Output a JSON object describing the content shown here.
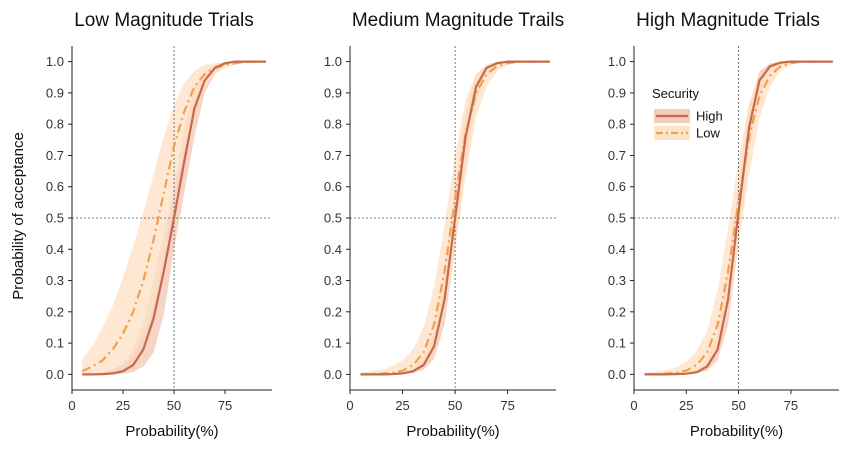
{
  "figure": {
    "ylabel": "Probability of acceptance"
  },
  "legend": {
    "title": "Security",
    "entries": [
      {
        "name": "High",
        "color": "#c8694a",
        "band": "#f3c7b3",
        "dash": "solid"
      },
      {
        "name": "Low",
        "color": "#f0a04f",
        "band": "#fde0c4",
        "dash": "dashdot"
      }
    ]
  },
  "chart_data": [
    {
      "type": "line",
      "title": "Low Magnitude Trials",
      "xlabel": "Probability(%)",
      "ylabel": "Probability of acceptance",
      "xlim": [
        0,
        98
      ],
      "ylim": [
        -0.05,
        1.05
      ],
      "xticks": [
        "0",
        "25",
        "50",
        "75"
      ],
      "yticks": [
        "0.0",
        "0.1",
        "0.2",
        "0.3",
        "0.4",
        "0.5",
        "0.6",
        "0.7",
        "0.8",
        "0.9",
        "1.0"
      ],
      "reference_lines": {
        "x": 50,
        "y": 0.5
      },
      "series": [
        {
          "name": "High",
          "x": [
            5,
            10,
            15,
            20,
            25,
            30,
            35,
            40,
            45,
            50,
            55,
            60,
            65,
            70,
            75,
            80,
            85,
            90,
            95
          ],
          "y": [
            0.0,
            0.0,
            0.001,
            0.003,
            0.01,
            0.03,
            0.08,
            0.18,
            0.33,
            0.5,
            0.68,
            0.85,
            0.94,
            0.98,
            0.995,
            1.0,
            1.0,
            1.0,
            1.0
          ],
          "lower": [
            0.0,
            0.0,
            0.0,
            0.0,
            0.002,
            0.008,
            0.025,
            0.07,
            0.19,
            0.4,
            0.58,
            0.76,
            0.9,
            0.96,
            0.99,
            0.997,
            1.0,
            1.0,
            1.0
          ],
          "upper": [
            0.0,
            0.002,
            0.006,
            0.015,
            0.035,
            0.08,
            0.17,
            0.3,
            0.46,
            0.6,
            0.78,
            0.92,
            0.97,
            0.99,
            0.999,
            1.0,
            1.0,
            1.0,
            1.0
          ]
        },
        {
          "name": "Low",
          "x": [
            5,
            10,
            15,
            20,
            25,
            30,
            35,
            40,
            45,
            50,
            55,
            60,
            65,
            70,
            75,
            80,
            85,
            90,
            95
          ],
          "y": [
            0.01,
            0.025,
            0.045,
            0.08,
            0.13,
            0.2,
            0.3,
            0.43,
            0.58,
            0.73,
            0.84,
            0.92,
            0.96,
            0.98,
            0.99,
            0.995,
            1.0,
            1.0,
            1.0
          ],
          "lower": [
            0.0,
            0.002,
            0.006,
            0.015,
            0.03,
            0.06,
            0.12,
            0.22,
            0.38,
            0.58,
            0.72,
            0.84,
            0.92,
            0.96,
            0.98,
            0.99,
            0.995,
            1.0,
            1.0
          ],
          "upper": [
            0.05,
            0.09,
            0.15,
            0.22,
            0.31,
            0.41,
            0.52,
            0.64,
            0.76,
            0.86,
            0.93,
            0.97,
            0.99,
            0.995,
            1.0,
            1.0,
            1.0,
            1.0,
            1.0
          ]
        }
      ]
    },
    {
      "type": "line",
      "title": "Medium Magnitude Trails",
      "xlabel": "Probability(%)",
      "ylabel": "",
      "xlim": [
        0,
        98
      ],
      "ylim": [
        -0.05,
        1.05
      ],
      "xticks": [
        "0",
        "25",
        "50",
        "75"
      ],
      "yticks": [
        "0.0",
        "0.1",
        "0.2",
        "0.3",
        "0.4",
        "0.5",
        "0.6",
        "0.7",
        "0.8",
        "0.9",
        "1.0"
      ],
      "reference_lines": {
        "x": 50,
        "y": 0.5
      },
      "series": [
        {
          "name": "High",
          "x": [
            5,
            10,
            15,
            20,
            25,
            30,
            35,
            40,
            45,
            50,
            55,
            60,
            65,
            70,
            75,
            80,
            85,
            90,
            95
          ],
          "y": [
            0.0,
            0.0,
            0.0,
            0.001,
            0.003,
            0.01,
            0.03,
            0.09,
            0.24,
            0.5,
            0.76,
            0.92,
            0.98,
            0.995,
            1.0,
            1.0,
            1.0,
            1.0,
            1.0
          ],
          "lower": [
            0.0,
            0.0,
            0.0,
            0.0,
            0.001,
            0.004,
            0.015,
            0.05,
            0.16,
            0.4,
            0.67,
            0.87,
            0.96,
            0.99,
            1.0,
            1.0,
            1.0,
            1.0,
            1.0
          ],
          "upper": [
            0.0,
            0.0,
            0.001,
            0.003,
            0.008,
            0.02,
            0.055,
            0.14,
            0.33,
            0.6,
            0.84,
            0.96,
            0.99,
            1.0,
            1.0,
            1.0,
            1.0,
            1.0,
            1.0
          ]
        },
        {
          "name": "Low",
          "x": [
            5,
            10,
            15,
            20,
            25,
            30,
            35,
            40,
            45,
            50,
            55,
            60,
            65,
            70,
            75,
            80,
            85,
            90,
            95
          ],
          "y": [
            0.0,
            0.001,
            0.002,
            0.005,
            0.012,
            0.03,
            0.07,
            0.16,
            0.33,
            0.56,
            0.77,
            0.9,
            0.96,
            0.985,
            0.995,
            1.0,
            1.0,
            1.0,
            1.0
          ],
          "lower": [
            0.0,
            0.0,
            0.0,
            0.001,
            0.003,
            0.01,
            0.03,
            0.08,
            0.2,
            0.4,
            0.63,
            0.82,
            0.92,
            0.97,
            0.99,
            0.997,
            1.0,
            1.0,
            1.0
          ],
          "upper": [
            0.005,
            0.01,
            0.015,
            0.025,
            0.045,
            0.08,
            0.15,
            0.28,
            0.48,
            0.7,
            0.88,
            0.96,
            0.99,
            0.997,
            1.0,
            1.0,
            1.0,
            1.0,
            1.0
          ]
        }
      ]
    },
    {
      "type": "line",
      "title": "High Magnitude Trials",
      "xlabel": "Probability(%)",
      "ylabel": "",
      "xlim": [
        0,
        98
      ],
      "ylim": [
        -0.05,
        1.05
      ],
      "xticks": [
        "0",
        "25",
        "50",
        "75"
      ],
      "yticks": [
        "0.0",
        "0.1",
        "0.2",
        "0.3",
        "0.4",
        "0.5",
        "0.6",
        "0.7",
        "0.8",
        "0.9",
        "1.0"
      ],
      "reference_lines": {
        "x": 50,
        "y": 0.5
      },
      "legend": "upper-left",
      "series": [
        {
          "name": "High",
          "x": [
            5,
            10,
            15,
            20,
            25,
            30,
            35,
            40,
            45,
            50,
            55,
            60,
            65,
            70,
            75,
            80,
            85,
            90,
            95
          ],
          "y": [
            0.0,
            0.0,
            0.0,
            0.001,
            0.002,
            0.007,
            0.025,
            0.08,
            0.24,
            0.52,
            0.79,
            0.94,
            0.985,
            0.997,
            1.0,
            1.0,
            1.0,
            1.0,
            1.0
          ],
          "lower": [
            0.0,
            0.0,
            0.0,
            0.0,
            0.001,
            0.003,
            0.012,
            0.045,
            0.16,
            0.42,
            0.71,
            0.9,
            0.97,
            0.99,
            1.0,
            1.0,
            1.0,
            1.0,
            1.0
          ],
          "upper": [
            0.0,
            0.0,
            0.001,
            0.002,
            0.006,
            0.016,
            0.05,
            0.14,
            0.34,
            0.62,
            0.86,
            0.97,
            0.995,
            1.0,
            1.0,
            1.0,
            1.0,
            1.0,
            1.0
          ]
        },
        {
          "name": "Low",
          "x": [
            5,
            10,
            15,
            20,
            25,
            30,
            35,
            40,
            45,
            50,
            55,
            60,
            65,
            70,
            75,
            80,
            85,
            90,
            95
          ],
          "y": [
            0.0,
            0.001,
            0.002,
            0.005,
            0.012,
            0.03,
            0.07,
            0.16,
            0.33,
            0.55,
            0.76,
            0.89,
            0.955,
            0.985,
            0.995,
            1.0,
            1.0,
            1.0,
            1.0
          ],
          "lower": [
            0.0,
            0.0,
            0.0,
            0.001,
            0.003,
            0.01,
            0.03,
            0.08,
            0.2,
            0.41,
            0.64,
            0.82,
            0.92,
            0.97,
            0.99,
            0.997,
            1.0,
            1.0,
            1.0
          ],
          "upper": [
            0.004,
            0.008,
            0.013,
            0.022,
            0.04,
            0.075,
            0.14,
            0.27,
            0.47,
            0.69,
            0.87,
            0.95,
            0.985,
            0.996,
            1.0,
            1.0,
            1.0,
            1.0,
            1.0
          ]
        }
      ]
    }
  ]
}
